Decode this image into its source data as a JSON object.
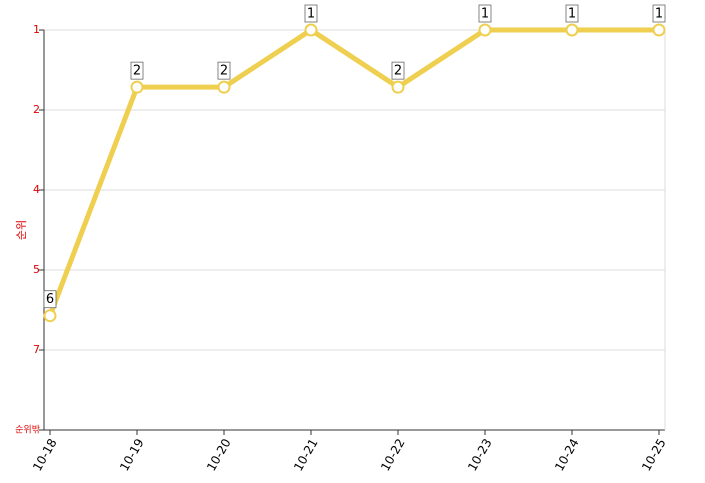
{
  "chart_data": {
    "type": "line",
    "y_label": "순위",
    "categories": [
      "10-18",
      "10-19",
      "10-20",
      "10-21",
      "10-22",
      "10-23",
      "10-24",
      "10-25"
    ],
    "series": [
      {
        "name": "순위",
        "color": "#efcf4f",
        "values": [
          6,
          2,
          2,
          1,
          2,
          1,
          1,
          1
        ]
      }
    ],
    "ylim": [
      1,
      8
    ],
    "y_inverted": true,
    "yticks": [
      1,
      {
        "value": 2.4,
        "label": "2"
      },
      {
        "value": 3.8,
        "label": "4"
      },
      {
        "value": 5.2,
        "label": "5"
      },
      {
        "value": 6.6,
        "label": "7"
      },
      {
        "value": 8,
        "label": "순위밖"
      }
    ],
    "grid": true
  }
}
